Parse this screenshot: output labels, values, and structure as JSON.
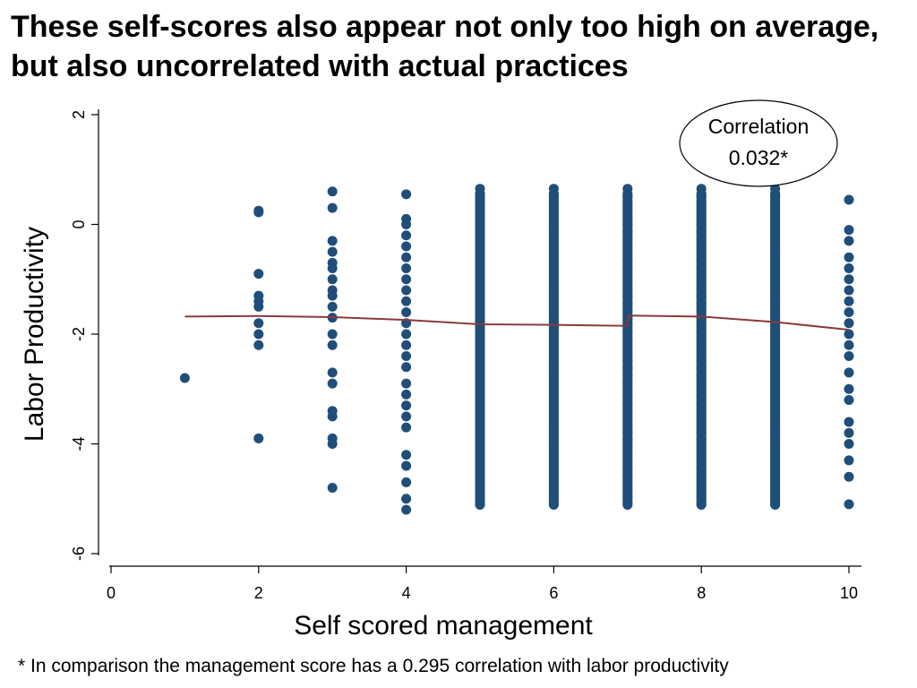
{
  "slide": {
    "title": "These self-scores also appear not only too high on average, but also uncorrelated with actual practices",
    "footnote": "* In comparison the management score has a 0.295 correlation with labor productivity"
  },
  "chart_data": {
    "type": "scatter",
    "title": "",
    "xlabel": "Self scored management",
    "ylabel": "Labor Productivity",
    "xlim": [
      0,
      10
    ],
    "ylim": [
      -6,
      2
    ],
    "x_ticks": [
      0,
      2,
      4,
      6,
      8,
      10
    ],
    "y_ticks": [
      {
        "value": 2,
        "label": "2"
      },
      {
        "value": 0,
        "label": "0"
      },
      {
        "value": -2,
        "label": "-2"
      },
      {
        "value": -4,
        "label": "-4"
      },
      {
        "value": -6,
        "label": "-6"
      }
    ],
    "grid": false,
    "annotation": {
      "line1": "Correlation",
      "line2": "0.032*"
    },
    "colors": {
      "points": "#1f4e79",
      "fit_line": "#8b3a3a"
    },
    "series": [
      {
        "type": "scatter",
        "points": [
          {
            "x": 1,
            "y": -2.8
          },
          {
            "x": 2,
            "y": 0.22
          },
          {
            "x": 2,
            "y": 0.25
          },
          {
            "x": 2,
            "y": -0.9
          },
          {
            "x": 2,
            "y": -1.3
          },
          {
            "x": 2,
            "y": -1.4
          },
          {
            "x": 2,
            "y": -1.5
          },
          {
            "x": 2,
            "y": -1.8
          },
          {
            "x": 2,
            "y": -2.0
          },
          {
            "x": 2,
            "y": -2.2
          },
          {
            "x": 2,
            "y": -3.9
          },
          {
            "x": 3,
            "y": 0.6
          },
          {
            "x": 3,
            "y": 0.3
          },
          {
            "x": 3,
            "y": -0.3
          },
          {
            "x": 3,
            "y": -0.5
          },
          {
            "x": 3,
            "y": -0.7
          },
          {
            "x": 3,
            "y": -0.8
          },
          {
            "x": 3,
            "y": -1.0
          },
          {
            "x": 3,
            "y": -1.2
          },
          {
            "x": 3,
            "y": -1.3
          },
          {
            "x": 3,
            "y": -1.5
          },
          {
            "x": 3,
            "y": -1.7
          },
          {
            "x": 3,
            "y": -2.0
          },
          {
            "x": 3,
            "y": -2.2
          },
          {
            "x": 3,
            "y": -2.7
          },
          {
            "x": 3,
            "y": -2.9
          },
          {
            "x": 3,
            "y": -3.4
          },
          {
            "x": 3,
            "y": -3.5
          },
          {
            "x": 3,
            "y": -3.9
          },
          {
            "x": 3,
            "y": -4.0
          },
          {
            "x": 3,
            "y": -4.8
          },
          {
            "x": 4,
            "y": 0.55
          },
          {
            "x": 4,
            "y": 0.1
          },
          {
            "x": 4,
            "y": 0.0
          },
          {
            "x": 4,
            "y": -0.2
          },
          {
            "x": 4,
            "y": -0.4
          },
          {
            "x": 4,
            "y": -0.6
          },
          {
            "x": 4,
            "y": -0.8
          },
          {
            "x": 4,
            "y": -1.0
          },
          {
            "x": 4,
            "y": -1.2
          },
          {
            "x": 4,
            "y": -1.4
          },
          {
            "x": 4,
            "y": -1.6
          },
          {
            "x": 4,
            "y": -1.8
          },
          {
            "x": 4,
            "y": -2.0
          },
          {
            "x": 4,
            "y": -2.2
          },
          {
            "x": 4,
            "y": -2.4
          },
          {
            "x": 4,
            "y": -2.6
          },
          {
            "x": 4,
            "y": -2.9
          },
          {
            "x": 4,
            "y": -3.1
          },
          {
            "x": 4,
            "y": -3.3
          },
          {
            "x": 4,
            "y": -3.5
          },
          {
            "x": 4,
            "y": -3.7
          },
          {
            "x": 4,
            "y": -4.2
          },
          {
            "x": 4,
            "y": -4.4
          },
          {
            "x": 4,
            "y": -4.7
          },
          {
            "x": 4,
            "y": -5.0
          },
          {
            "x": 4,
            "y": -5.2
          }
        ]
      },
      {
        "type": "scatter_column_range",
        "note": "dense vertical columns of points",
        "columns": [
          {
            "x": 5,
            "y_min": -5.2,
            "y_max": 0.65
          },
          {
            "x": 6,
            "y_min": -5.2,
            "y_max": 0.65
          },
          {
            "x": 7,
            "y_min": -5.2,
            "y_max": 0.65
          },
          {
            "x": 8,
            "y_min": -5.2,
            "y_max": 0.65
          },
          {
            "x": 9,
            "y_min": -5.2,
            "y_max": 0.65
          }
        ]
      },
      {
        "type": "scatter",
        "points": [
          {
            "x": 10,
            "y": 0.45
          },
          {
            "x": 10,
            "y": -0.1
          },
          {
            "x": 10,
            "y": -0.3
          },
          {
            "x": 10,
            "y": -0.6
          },
          {
            "x": 10,
            "y": -0.8
          },
          {
            "x": 10,
            "y": -1.0
          },
          {
            "x": 10,
            "y": -1.2
          },
          {
            "x": 10,
            "y": -1.4
          },
          {
            "x": 10,
            "y": -1.6
          },
          {
            "x": 10,
            "y": -1.8
          },
          {
            "x": 10,
            "y": -2.0
          },
          {
            "x": 10,
            "y": -2.2
          },
          {
            "x": 10,
            "y": -2.4
          },
          {
            "x": 10,
            "y": -2.7
          },
          {
            "x": 10,
            "y": -3.0
          },
          {
            "x": 10,
            "y": -3.2
          },
          {
            "x": 10,
            "y": -3.6
          },
          {
            "x": 10,
            "y": -3.8
          },
          {
            "x": 10,
            "y": -4.0
          },
          {
            "x": 10,
            "y": -4.3
          },
          {
            "x": 10,
            "y": -4.6
          },
          {
            "x": 10,
            "y": -5.1
          }
        ]
      },
      {
        "type": "line",
        "points": [
          {
            "x": 1,
            "y": -1.68
          },
          {
            "x": 2,
            "y": -1.67
          },
          {
            "x": 3,
            "y": -1.69
          },
          {
            "x": 4,
            "y": -1.74
          },
          {
            "x": 5,
            "y": -1.82
          },
          {
            "x": 6,
            "y": -1.83
          },
          {
            "x": 6.98,
            "y": -1.85
          },
          {
            "x": 7.02,
            "y": -1.66
          },
          {
            "x": 8,
            "y": -1.68
          },
          {
            "x": 9,
            "y": -1.78
          },
          {
            "x": 10,
            "y": -1.92
          }
        ]
      }
    ]
  }
}
